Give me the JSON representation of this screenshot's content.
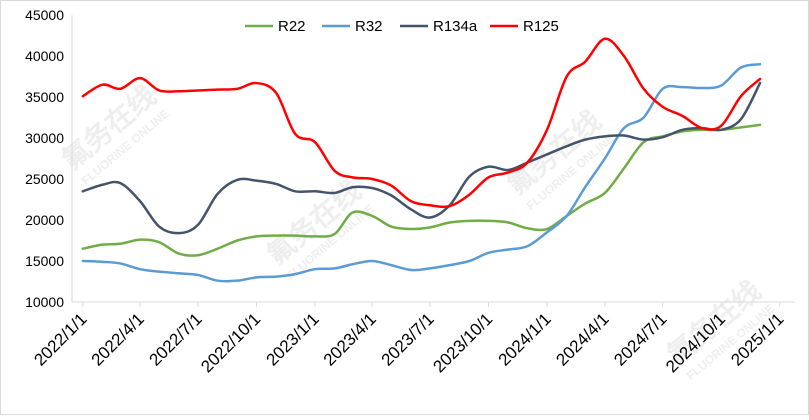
{
  "colors": {
    "R22": "#70AD47",
    "R32": "#5B9BD5",
    "R134a": "#44546A",
    "R125": "#FF0000",
    "axis": "#D9D9D9",
    "text": "#000000"
  },
  "watermark": "氟务在线 FLUORINE ONLINE",
  "chart_data": {
    "type": "line",
    "title": "",
    "xlabel": "",
    "ylabel": "",
    "xlim": [
      "2021-12-15",
      "2025-01-25"
    ],
    "ylim": [
      10000,
      45000
    ],
    "ytick_step": 5000,
    "y_ticks": [
      "10000",
      "15000",
      "20000",
      "25000",
      "30000",
      "35000",
      "40000",
      "45000"
    ],
    "x_ticks": [
      {
        "date": "2022-01-01",
        "label": "2022/1/1"
      },
      {
        "date": "2022-04-01",
        "label": "2022/4/1"
      },
      {
        "date": "2022-07-01",
        "label": "2022/7/1"
      },
      {
        "date": "2022-10-01",
        "label": "2022/10/1"
      },
      {
        "date": "2023-01-01",
        "label": "2023/1/1"
      },
      {
        "date": "2023-04-01",
        "label": "2023/4/1"
      },
      {
        "date": "2023-07-01",
        "label": "2023/7/1"
      },
      {
        "date": "2023-10-01",
        "label": "2023/10/1"
      },
      {
        "date": "2024-01-01",
        "label": "2024/1/1"
      },
      {
        "date": "2024-04-01",
        "label": "2024/4/1"
      },
      {
        "date": "2024-07-01",
        "label": "2024/7/1"
      },
      {
        "date": "2024-10-01",
        "label": "2024/10/1"
      },
      {
        "date": "2025-01-01",
        "label": "2025/1/1"
      }
    ],
    "grid": false,
    "legend": "top",
    "series": [
      {
        "name": "R22",
        "x": [
          "2022-01-01",
          "2022-02-01",
          "2022-03-01",
          "2022-04-01",
          "2022-05-01",
          "2022-06-01",
          "2022-07-01",
          "2022-08-01",
          "2022-09-01",
          "2022-10-01",
          "2022-11-01",
          "2022-12-01",
          "2023-01-01",
          "2023-02-01",
          "2023-03-01",
          "2023-04-01",
          "2023-05-01",
          "2023-06-01",
          "2023-07-01",
          "2023-08-01",
          "2023-09-01",
          "2023-10-01",
          "2023-11-01",
          "2023-12-01",
          "2024-01-01",
          "2024-02-01",
          "2024-03-01",
          "2024-04-01",
          "2024-05-01",
          "2024-06-01",
          "2024-07-01",
          "2024-08-01",
          "2024-09-01",
          "2024-10-01",
          "2024-11-01",
          "2024-12-01"
        ],
        "values": [
          16500,
          17000,
          17100,
          17600,
          17300,
          15900,
          15700,
          16500,
          17500,
          18000,
          18100,
          18100,
          18000,
          18300,
          20900,
          20500,
          19200,
          18900,
          19100,
          19700,
          19900,
          19900,
          19700,
          19000,
          18900,
          20500,
          22000,
          23300,
          26300,
          29500,
          30200,
          30800,
          31000,
          31000,
          31300,
          31600
        ]
      },
      {
        "name": "R32",
        "x": [
          "2022-01-01",
          "2022-02-01",
          "2022-03-01",
          "2022-04-01",
          "2022-05-01",
          "2022-06-01",
          "2022-07-01",
          "2022-08-01",
          "2022-09-01",
          "2022-10-01",
          "2022-11-01",
          "2022-12-01",
          "2023-01-01",
          "2023-02-01",
          "2023-03-01",
          "2023-04-01",
          "2023-05-01",
          "2023-06-01",
          "2023-07-01",
          "2023-08-01",
          "2023-09-01",
          "2023-10-01",
          "2023-11-01",
          "2023-12-01",
          "2024-01-01",
          "2024-02-01",
          "2024-03-01",
          "2024-04-01",
          "2024-05-01",
          "2024-06-01",
          "2024-07-01",
          "2024-08-01",
          "2024-09-01",
          "2024-10-01",
          "2024-11-01",
          "2024-12-01"
        ],
        "values": [
          15000,
          14900,
          14700,
          14000,
          13700,
          13500,
          13300,
          12600,
          12600,
          13000,
          13100,
          13400,
          14000,
          14100,
          14600,
          15000,
          14500,
          13900,
          14100,
          14500,
          15000,
          16000,
          16400,
          16800,
          18500,
          20500,
          24000,
          27500,
          31200,
          32500,
          36000,
          36200,
          36100,
          36400,
          38600,
          39000
        ]
      },
      {
        "name": "R134a",
        "x": [
          "2022-01-01",
          "2022-02-01",
          "2022-03-01",
          "2022-04-01",
          "2022-05-01",
          "2022-06-01",
          "2022-07-01",
          "2022-08-01",
          "2022-09-01",
          "2022-10-01",
          "2022-11-01",
          "2022-12-01",
          "2023-01-01",
          "2023-02-01",
          "2023-03-01",
          "2023-04-01",
          "2023-05-01",
          "2023-06-01",
          "2023-07-01",
          "2023-08-01",
          "2023-09-01",
          "2023-10-01",
          "2023-11-01",
          "2023-12-01",
          "2024-01-01",
          "2024-02-01",
          "2024-03-01",
          "2024-04-01",
          "2024-05-01",
          "2024-06-01",
          "2024-07-01",
          "2024-08-01",
          "2024-09-01",
          "2024-10-01",
          "2024-11-01",
          "2024-12-01"
        ],
        "values": [
          23500,
          24300,
          24500,
          22300,
          19200,
          18400,
          19400,
          23200,
          24900,
          24800,
          24400,
          23500,
          23500,
          23300,
          24000,
          23900,
          23000,
          21300,
          20300,
          21800,
          25300,
          26500,
          26100,
          27000,
          28000,
          29000,
          29800,
          30200,
          30300,
          29800,
          30100,
          31000,
          31200,
          31000,
          32300,
          36700
        ]
      },
      {
        "name": "R125",
        "x": [
          "2022-01-01",
          "2022-02-01",
          "2022-03-01",
          "2022-04-01",
          "2022-05-01",
          "2022-06-01",
          "2022-07-01",
          "2022-08-01",
          "2022-09-01",
          "2022-10-01",
          "2022-11-01",
          "2022-12-01",
          "2023-01-01",
          "2023-02-01",
          "2023-03-01",
          "2023-04-01",
          "2023-05-01",
          "2023-06-01",
          "2023-07-01",
          "2023-08-01",
          "2023-09-01",
          "2023-10-01",
          "2023-11-01",
          "2023-12-01",
          "2024-01-01",
          "2024-02-01",
          "2024-03-01",
          "2024-04-01",
          "2024-05-01",
          "2024-06-01",
          "2024-07-01",
          "2024-08-01",
          "2024-09-01",
          "2024-10-01",
          "2024-11-01",
          "2024-12-01"
        ],
        "values": [
          35100,
          36500,
          36000,
          37300,
          35800,
          35700,
          35800,
          35900,
          36000,
          36700,
          35500,
          30500,
          29500,
          26000,
          25200,
          25000,
          24200,
          22300,
          21800,
          21700,
          23100,
          25200,
          25800,
          27000,
          31000,
          37500,
          39300,
          42100,
          40000,
          36000,
          33800,
          32700,
          31200,
          31500,
          35100,
          37200
        ]
      }
    ]
  }
}
